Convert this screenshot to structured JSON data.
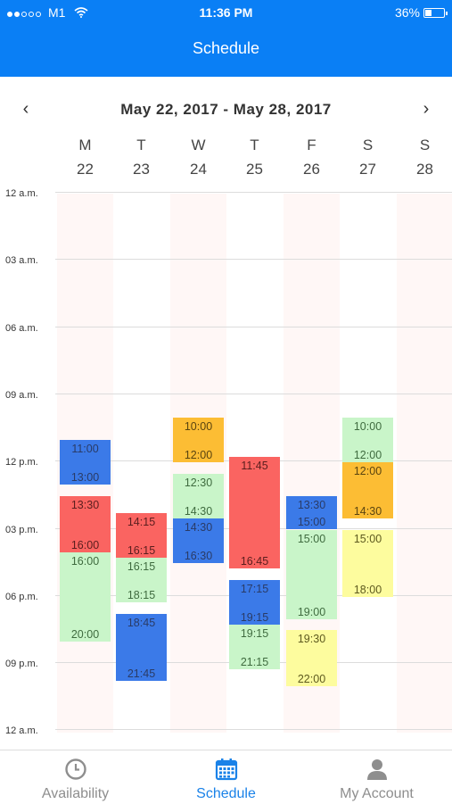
{
  "status_bar": {
    "carrier": "M1",
    "time": "11:36 PM",
    "battery": "36%",
    "battery_level": 0.36
  },
  "header": {
    "title": "Schedule"
  },
  "week": {
    "prev_icon": "chevron-left-icon",
    "next_icon": "chevron-right-icon",
    "range": "May 22, 2017  -  May 28, 2017"
  },
  "days": [
    {
      "name": "M",
      "date": "22"
    },
    {
      "name": "T",
      "date": "23"
    },
    {
      "name": "W",
      "date": "24"
    },
    {
      "name": "T",
      "date": "25"
    },
    {
      "name": "F",
      "date": "26"
    },
    {
      "name": "S",
      "date": "27"
    },
    {
      "name": "S",
      "date": "28"
    }
  ],
  "time_labels": [
    "12 a.m.",
    "03 a.m.",
    "06 a.m.",
    "09 a.m.",
    "12 p.m.",
    "03 p.m.",
    "06 p.m.",
    "09 p.m.",
    "12 a.m."
  ],
  "colors": {
    "blue": "#3b7ae8",
    "red": "#fa6461",
    "green": "#c9f5c9",
    "orange": "#fcbd34",
    "yellow": "#fdfc9e",
    "header": "#0a7ff5",
    "tab_active": "#1a82e8",
    "tab_inactive": "#8e8e8e"
  },
  "shifts": [
    {
      "day": 0,
      "start": "11:00",
      "end": "13:00",
      "color": "blue"
    },
    {
      "day": 0,
      "start": "13:30",
      "end": "16:00",
      "color": "red"
    },
    {
      "day": 0,
      "start": "16:00",
      "end": "20:00",
      "color": "green"
    },
    {
      "day": 1,
      "start": "14:15",
      "end": "16:15",
      "color": "red"
    },
    {
      "day": 1,
      "start": "16:15",
      "end": "18:15",
      "color": "green"
    },
    {
      "day": 1,
      "start": "18:45",
      "end": "21:45",
      "color": "blue"
    },
    {
      "day": 2,
      "start": "10:00",
      "end": "12:00",
      "color": "orange"
    },
    {
      "day": 2,
      "start": "12:30",
      "end": "14:30",
      "color": "green"
    },
    {
      "day": 2,
      "start": "14:30",
      "end": "16:30",
      "color": "blue"
    },
    {
      "day": 3,
      "start": "11:45",
      "end": "16:45",
      "color": "red"
    },
    {
      "day": 3,
      "start": "17:15",
      "end": "19:15",
      "color": "blue"
    },
    {
      "day": 3,
      "start": "19:15",
      "end": "21:15",
      "color": "green"
    },
    {
      "day": 4,
      "start": "13:30",
      "end": "15:00",
      "color": "blue"
    },
    {
      "day": 4,
      "start": "15:00",
      "end": "19:00",
      "color": "green"
    },
    {
      "day": 4,
      "start": "19:30",
      "end": "22:00",
      "color": "yellow"
    },
    {
      "day": 5,
      "start": "10:00",
      "end": "12:00",
      "color": "green"
    },
    {
      "day": 5,
      "start": "12:00",
      "end": "14:30",
      "color": "orange"
    },
    {
      "day": 5,
      "start": "15:00",
      "end": "18:00",
      "color": "yellow"
    }
  ],
  "tabs": [
    {
      "label": "Availability",
      "icon": "clock-icon",
      "active": false
    },
    {
      "label": "Schedule",
      "icon": "calendar-icon",
      "active": true
    },
    {
      "label": "My Account",
      "icon": "user-icon",
      "active": false
    }
  ]
}
